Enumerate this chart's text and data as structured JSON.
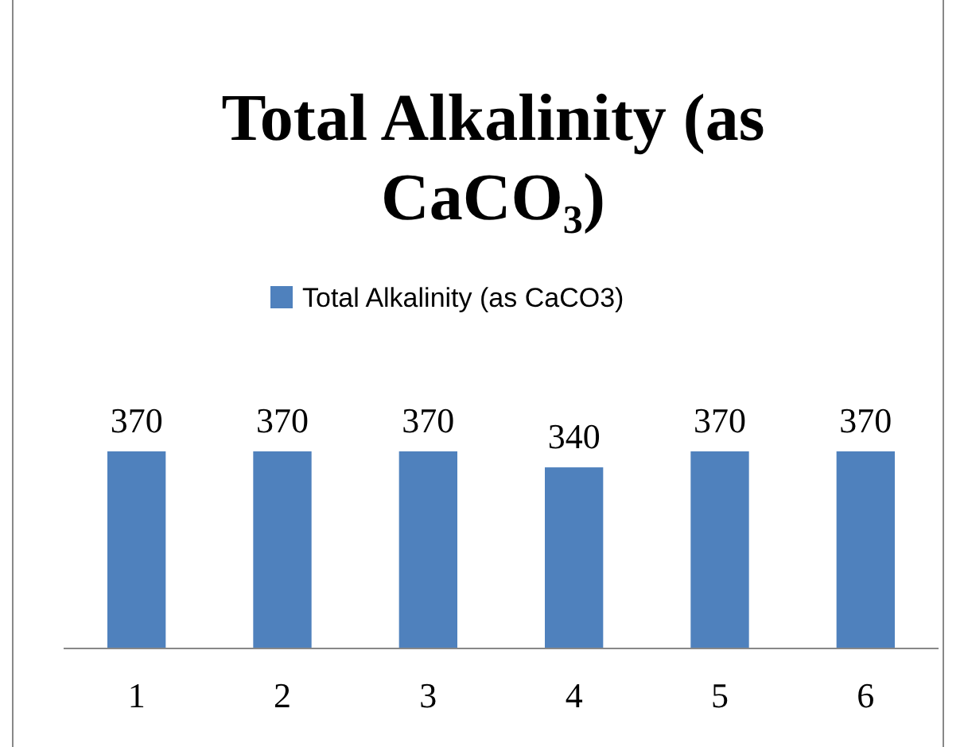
{
  "chart_data": {
    "type": "bar",
    "title": "Total Alkalinity (as CaCO₃)",
    "categories": [
      "1",
      "2",
      "3",
      "4",
      "5",
      "6"
    ],
    "series": [
      {
        "name": "Total Alkalinity (as CaCO3)",
        "color": "#4f81bd",
        "values": [
          370,
          370,
          370,
          340,
          370,
          370
        ]
      }
    ],
    "data_labels": true,
    "legend": "top",
    "tick_labels": "x"
  }
}
